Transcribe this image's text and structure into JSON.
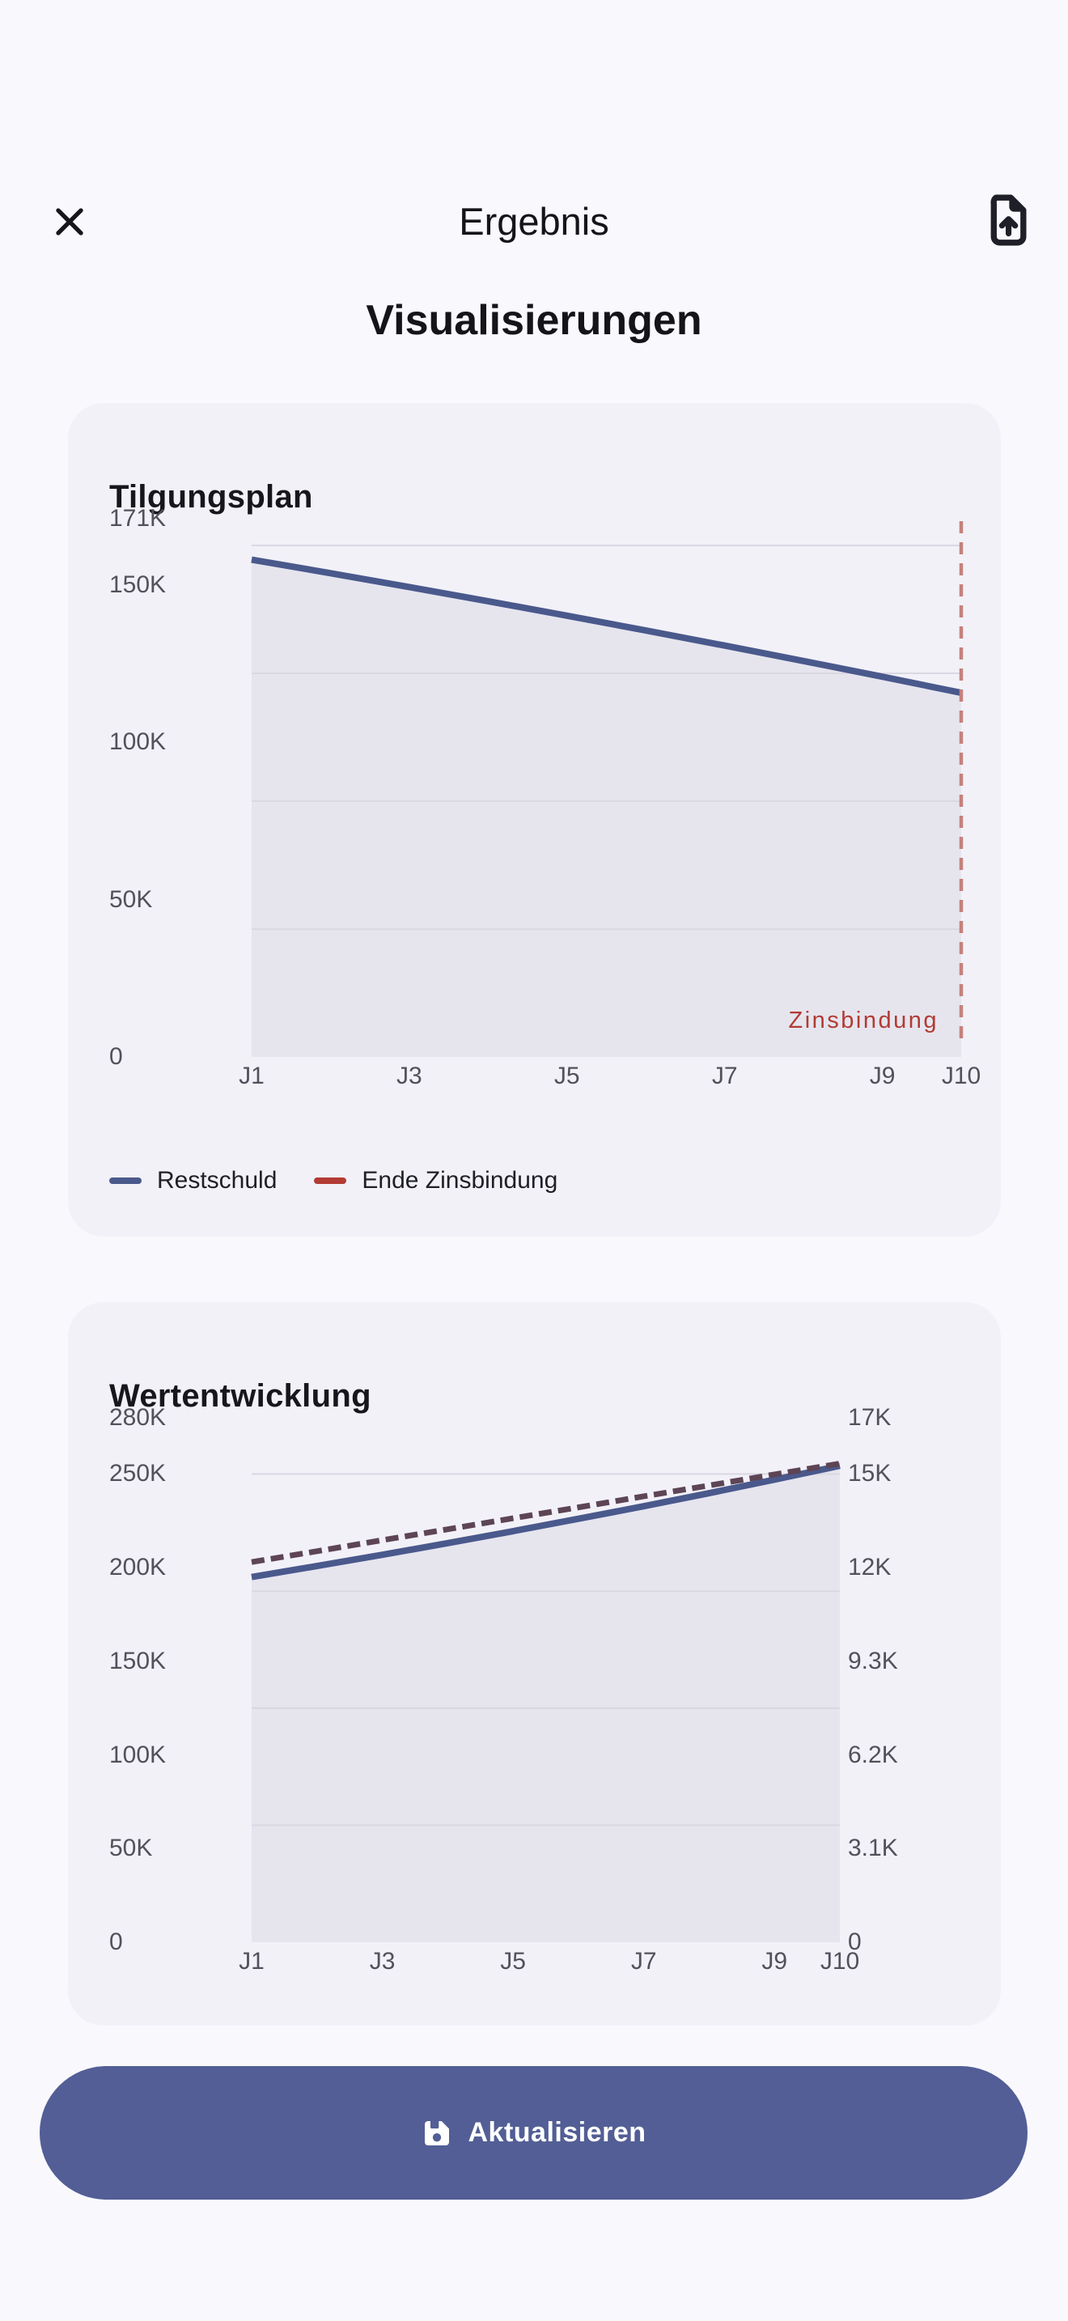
{
  "header": {
    "title": "Ergebnis",
    "subtitle": "Visualisierungen"
  },
  "colors": {
    "page_bg": "#f9f8fd",
    "card_bg": "#f2f1f8",
    "area_fill": "#e6e5ee",
    "gridline": "#d9d8e2",
    "line_blue": "#4a598c",
    "legend_red": "#b23b33",
    "vline_red": "#c5817d",
    "line_plum": "#5d4555",
    "button_bg": "#525e95",
    "text_dark": "#17171b",
    "text_gray": "#52515b"
  },
  "chart_data": [
    {
      "type": "area",
      "title": "Tilgungsplan",
      "value_unit": "K",
      "ylim": [
        0,
        171
      ],
      "grid": true,
      "gridline_values": [
        162.5,
        121.9,
        81.3,
        40.6
      ],
      "y_ticks": [
        {
          "label": "171K",
          "value": 171
        },
        {
          "label": "150K",
          "value": 150
        },
        {
          "label": "100K",
          "value": 100
        },
        {
          "label": "50K",
          "value": 50
        },
        {
          "label": "0",
          "value": 0
        }
      ],
      "x_ticks": [
        {
          "label": "J1",
          "index": 0
        },
        {
          "label": "J3",
          "index": 2
        },
        {
          "label": "J5",
          "index": 4
        },
        {
          "label": "J7",
          "index": 6
        },
        {
          "label": "J9",
          "index": 8
        },
        {
          "label": "J10",
          "index": 9
        }
      ],
      "series": [
        {
          "name": "Restschuld",
          "style": "solid",
          "color": "#4a598c",
          "fill": true,
          "values": [
            158,
            153.7,
            149.3,
            144.8,
            140.2,
            135.5,
            130.7,
            125.8,
            120.8,
            115.7
          ]
        }
      ],
      "annotation": {
        "label": "Zinsbindung",
        "x_index": 9,
        "line_color": "#c5817d",
        "text_color": "#b23b33"
      },
      "legend": [
        {
          "label": "Restschuld",
          "color": "#4a598c"
        },
        {
          "label": "Ende Zinsbindung",
          "color": "#b23b33"
        }
      ],
      "legend_position": "bottom-left"
    },
    {
      "type": "area",
      "title": "Wertentwicklung",
      "value_unit": "K",
      "ylim": [
        0,
        280
      ],
      "grid": true,
      "gridline_values": [
        250,
        187.5,
        125,
        62.5
      ],
      "y_ticks": [
        {
          "label": "280K",
          "value": 280
        },
        {
          "label": "250K",
          "value": 250
        },
        {
          "label": "200K",
          "value": 200
        },
        {
          "label": "150K",
          "value": 150
        },
        {
          "label": "100K",
          "value": 100
        },
        {
          "label": "50K",
          "value": 50
        },
        {
          "label": "0",
          "value": 0
        }
      ],
      "y_ticks_right": [
        {
          "label": "17K",
          "at": 280
        },
        {
          "label": "15K",
          "at": 250
        },
        {
          "label": "12K",
          "at": 200
        },
        {
          "label": "9.3K",
          "at": 150
        },
        {
          "label": "6.2K",
          "at": 100
        },
        {
          "label": "3.1K",
          "at": 50
        },
        {
          "label": "0",
          "at": 0
        }
      ],
      "x_ticks": [
        {
          "label": "J1",
          "index": 0
        },
        {
          "label": "J3",
          "index": 2
        },
        {
          "label": "J5",
          "index": 4
        },
        {
          "label": "J7",
          "index": 6
        },
        {
          "label": "J9",
          "index": 8
        },
        {
          "label": "J10",
          "index": 9
        }
      ],
      "series": [
        {
          "name": "",
          "style": "solid",
          "color": "#4a598c",
          "fill": true,
          "values": [
            195,
            200.9,
            206.9,
            213.1,
            219.5,
            226.1,
            232.8,
            239.8,
            247,
            254.4
          ]
        },
        {
          "name": "",
          "style": "dashed",
          "color": "#5d4555",
          "fill": false,
          "values": [
            203,
            208.8,
            214.7,
            220.5,
            226.4,
            232.2,
            238.1,
            243.9,
            249.8,
            255.6
          ]
        }
      ]
    }
  ],
  "button": {
    "label": "Aktualisieren"
  }
}
